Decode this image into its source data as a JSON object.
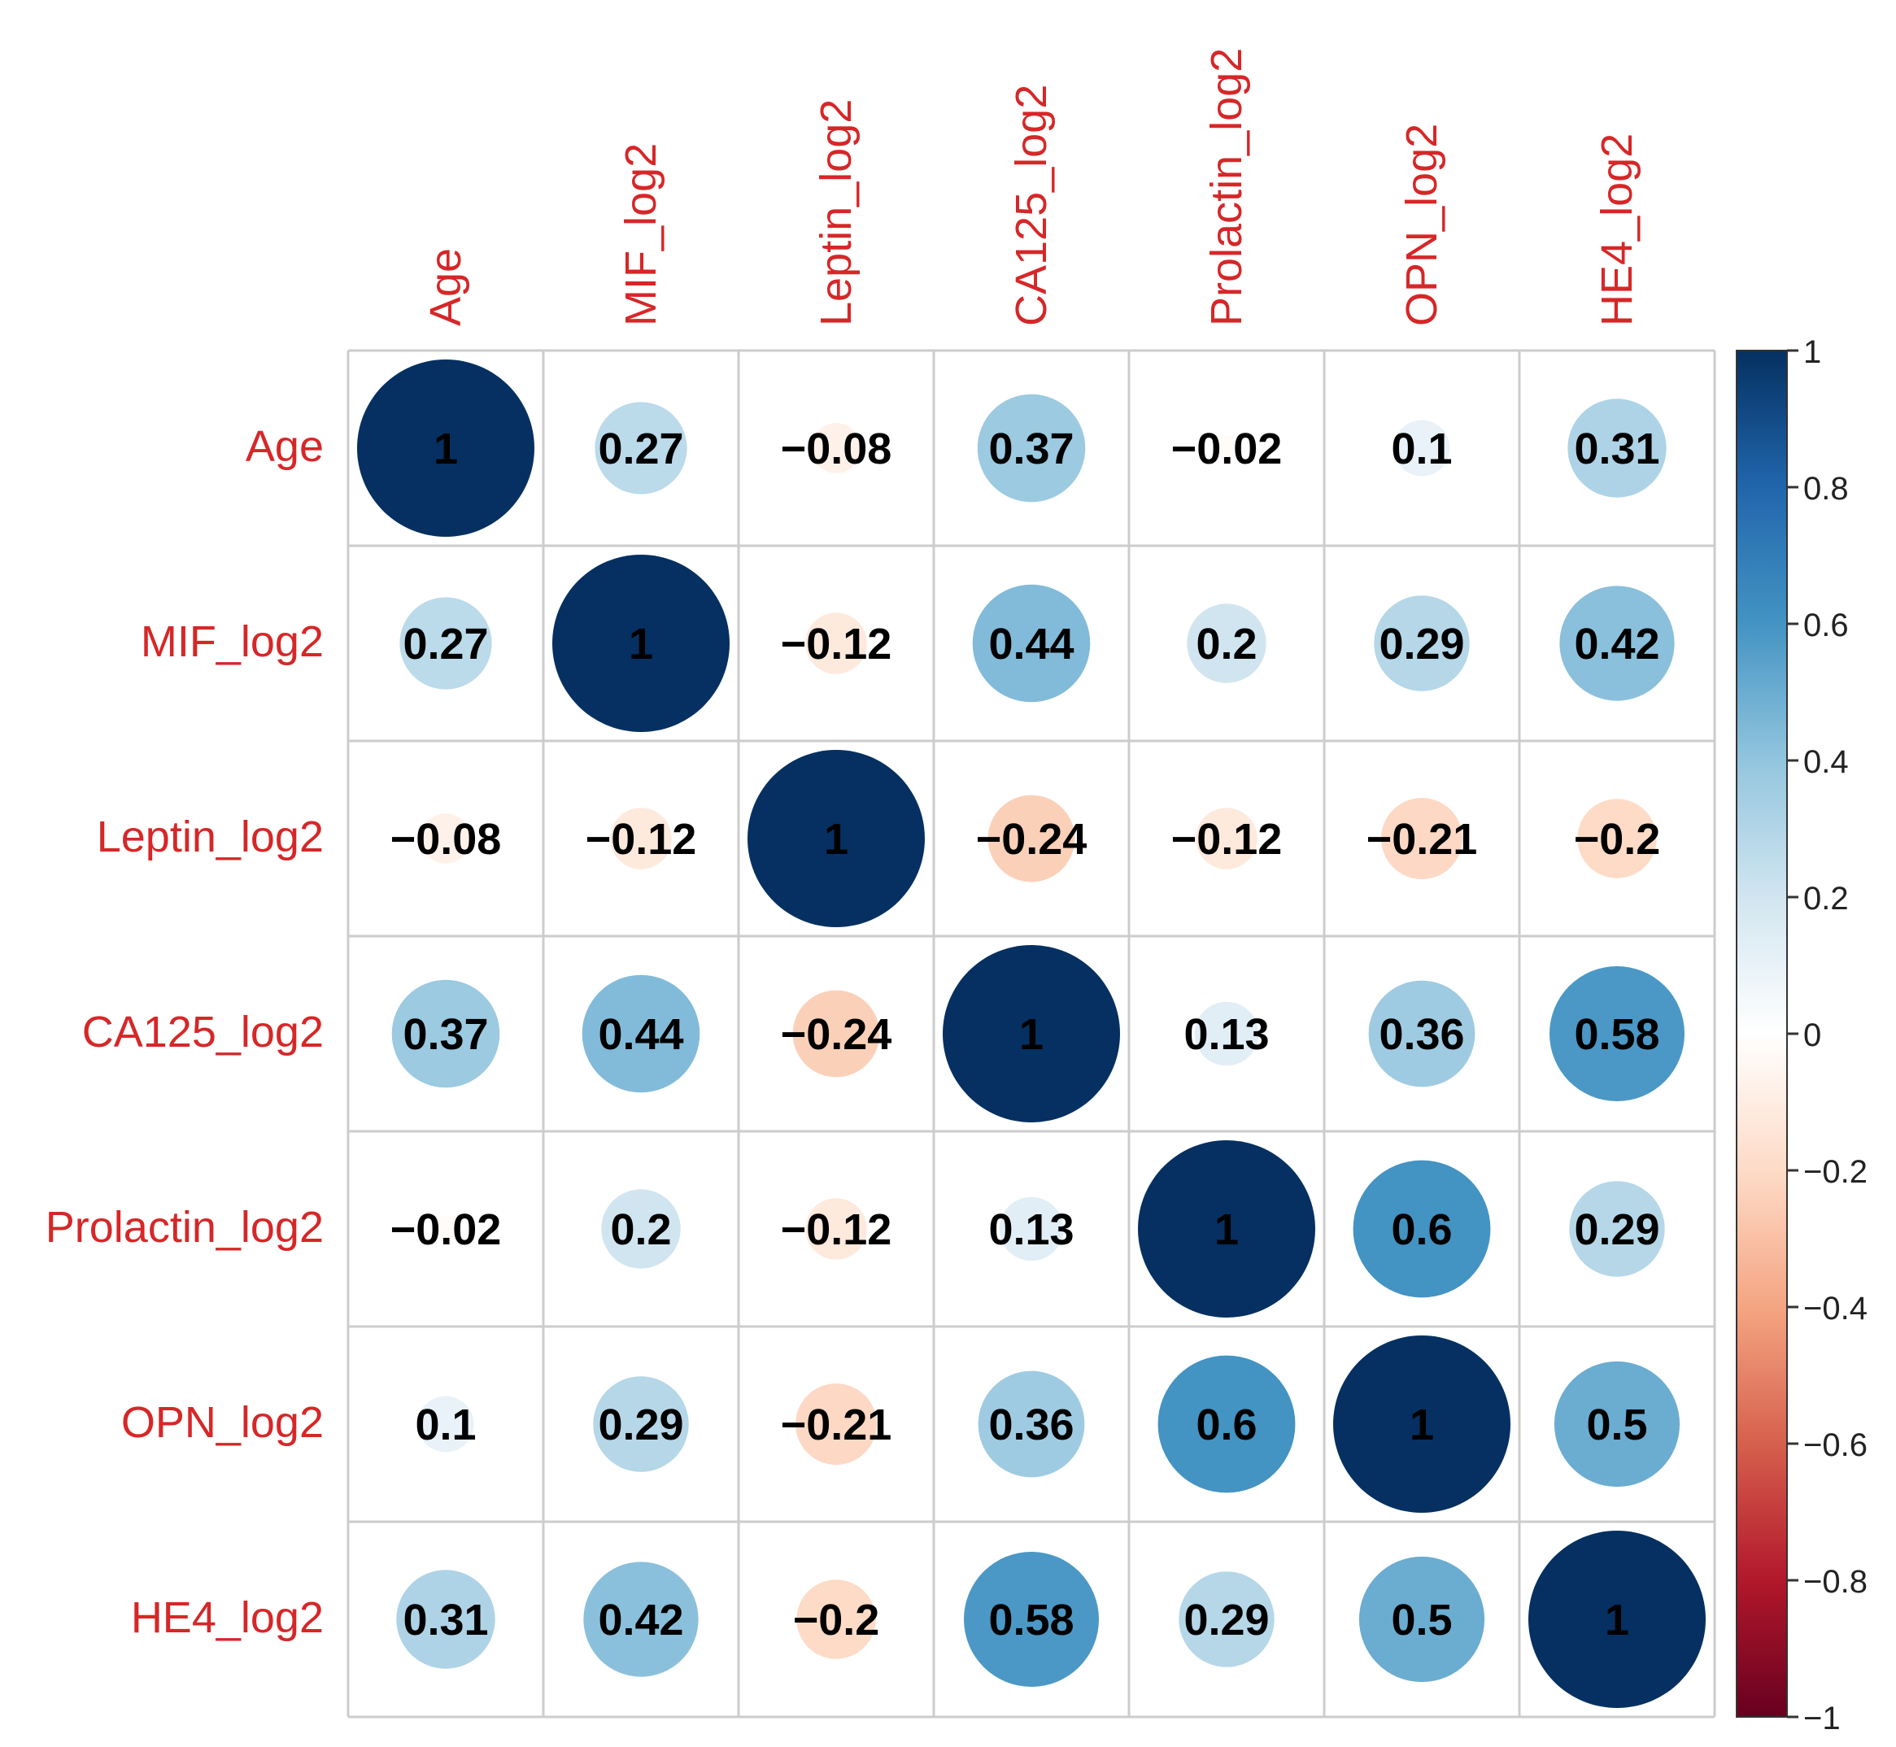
{
  "chart_data": {
    "type": "heatmap",
    "style": "corrplot-circle",
    "variables": [
      "Age",
      "MIF_log2",
      "Leptin_log2",
      "CA125_log2",
      "Prolactin_log2",
      "OPN_log2",
      "HE4_log2"
    ],
    "matrix": [
      [
        1,
        0.27,
        -0.08,
        0.37,
        -0.02,
        0.1,
        0.31
      ],
      [
        0.27,
        1,
        -0.12,
        0.44,
        0.2,
        0.29,
        0.42
      ],
      [
        -0.08,
        -0.12,
        1,
        -0.24,
        -0.12,
        -0.21,
        -0.2
      ],
      [
        0.37,
        0.44,
        -0.24,
        1,
        0.13,
        0.36,
        0.58
      ],
      [
        -0.02,
        0.2,
        -0.12,
        0.13,
        1,
        0.6,
        0.29
      ],
      [
        0.1,
        0.29,
        -0.21,
        0.36,
        0.6,
        1,
        0.5
      ],
      [
        0.31,
        0.42,
        -0.2,
        0.58,
        0.29,
        0.5,
        1
      ]
    ],
    "labels": [
      [
        "1",
        "0.27",
        "−0.08",
        "0.37",
        "−0.02",
        "0.1",
        "0.31"
      ],
      [
        "0.27",
        "1",
        "−0.12",
        "0.44",
        "0.2",
        "0.29",
        "0.42"
      ],
      [
        "−0.08",
        "−0.12",
        "1",
        "−0.24",
        "−0.12",
        "−0.21",
        "−0.2"
      ],
      [
        "0.37",
        "0.44",
        "−0.24",
        "1",
        "0.13",
        "0.36",
        "0.58"
      ],
      [
        "−0.02",
        "0.2",
        "−0.12",
        "0.13",
        "1",
        "0.6",
        "0.29"
      ],
      [
        "0.1",
        "0.29",
        "−0.21",
        "0.36",
        "0.6",
        "1",
        "0.5"
      ],
      [
        "0.31",
        "0.42",
        "−0.2",
        "0.58",
        "0.29",
        "0.5",
        "1"
      ]
    ],
    "colorbar": {
      "range": [
        -1,
        1
      ],
      "tick_values": [
        1,
        0.8,
        0.6,
        0.4,
        0.2,
        0,
        -0.2,
        -0.4,
        -0.6,
        -0.8,
        -1
      ],
      "tick_labels": [
        "1",
        "0.8",
        "0.6",
        "0.4",
        "0.2",
        "0",
        "−0.2",
        "−0.4",
        "−0.6",
        "−0.8",
        "−1"
      ],
      "placement": "right"
    },
    "grid": true,
    "colors": {
      "label": "#d62728",
      "positive_max": "#053061",
      "negative_max": "#67001f",
      "neutral": "#ffffff",
      "grid": "#cccccc"
    }
  }
}
